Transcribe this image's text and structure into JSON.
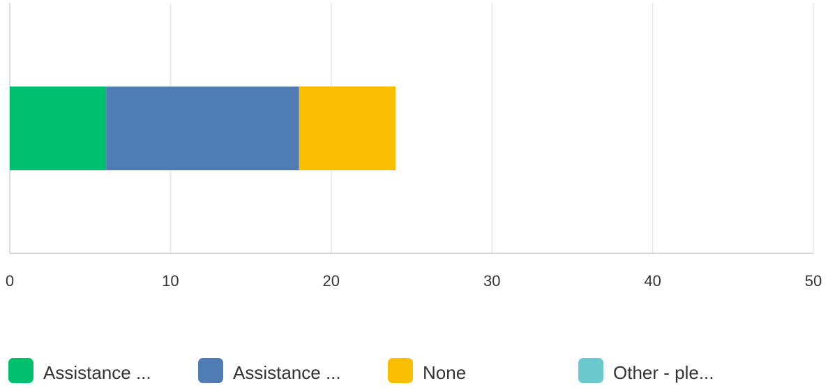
{
  "chart_data": {
    "type": "bar",
    "orientation": "horizontal",
    "stacked": true,
    "categories": [
      ""
    ],
    "series": [
      {
        "name": "Assistance ...",
        "values": [
          6
        ],
        "color": "#00BF6F"
      },
      {
        "name": "Assistance ...",
        "values": [
          12
        ],
        "color": "#507CB6"
      },
      {
        "name": "None",
        "values": [
          6
        ],
        "color": "#F9BE00"
      },
      {
        "name": "Other - ple...",
        "values": [
          0
        ],
        "color": "#6BC8CD"
      }
    ],
    "xlim": [
      0,
      50
    ],
    "xticks": [
      "0",
      "10",
      "20",
      "30",
      "40",
      "50"
    ],
    "grid": true,
    "legend_position": "bottom"
  }
}
